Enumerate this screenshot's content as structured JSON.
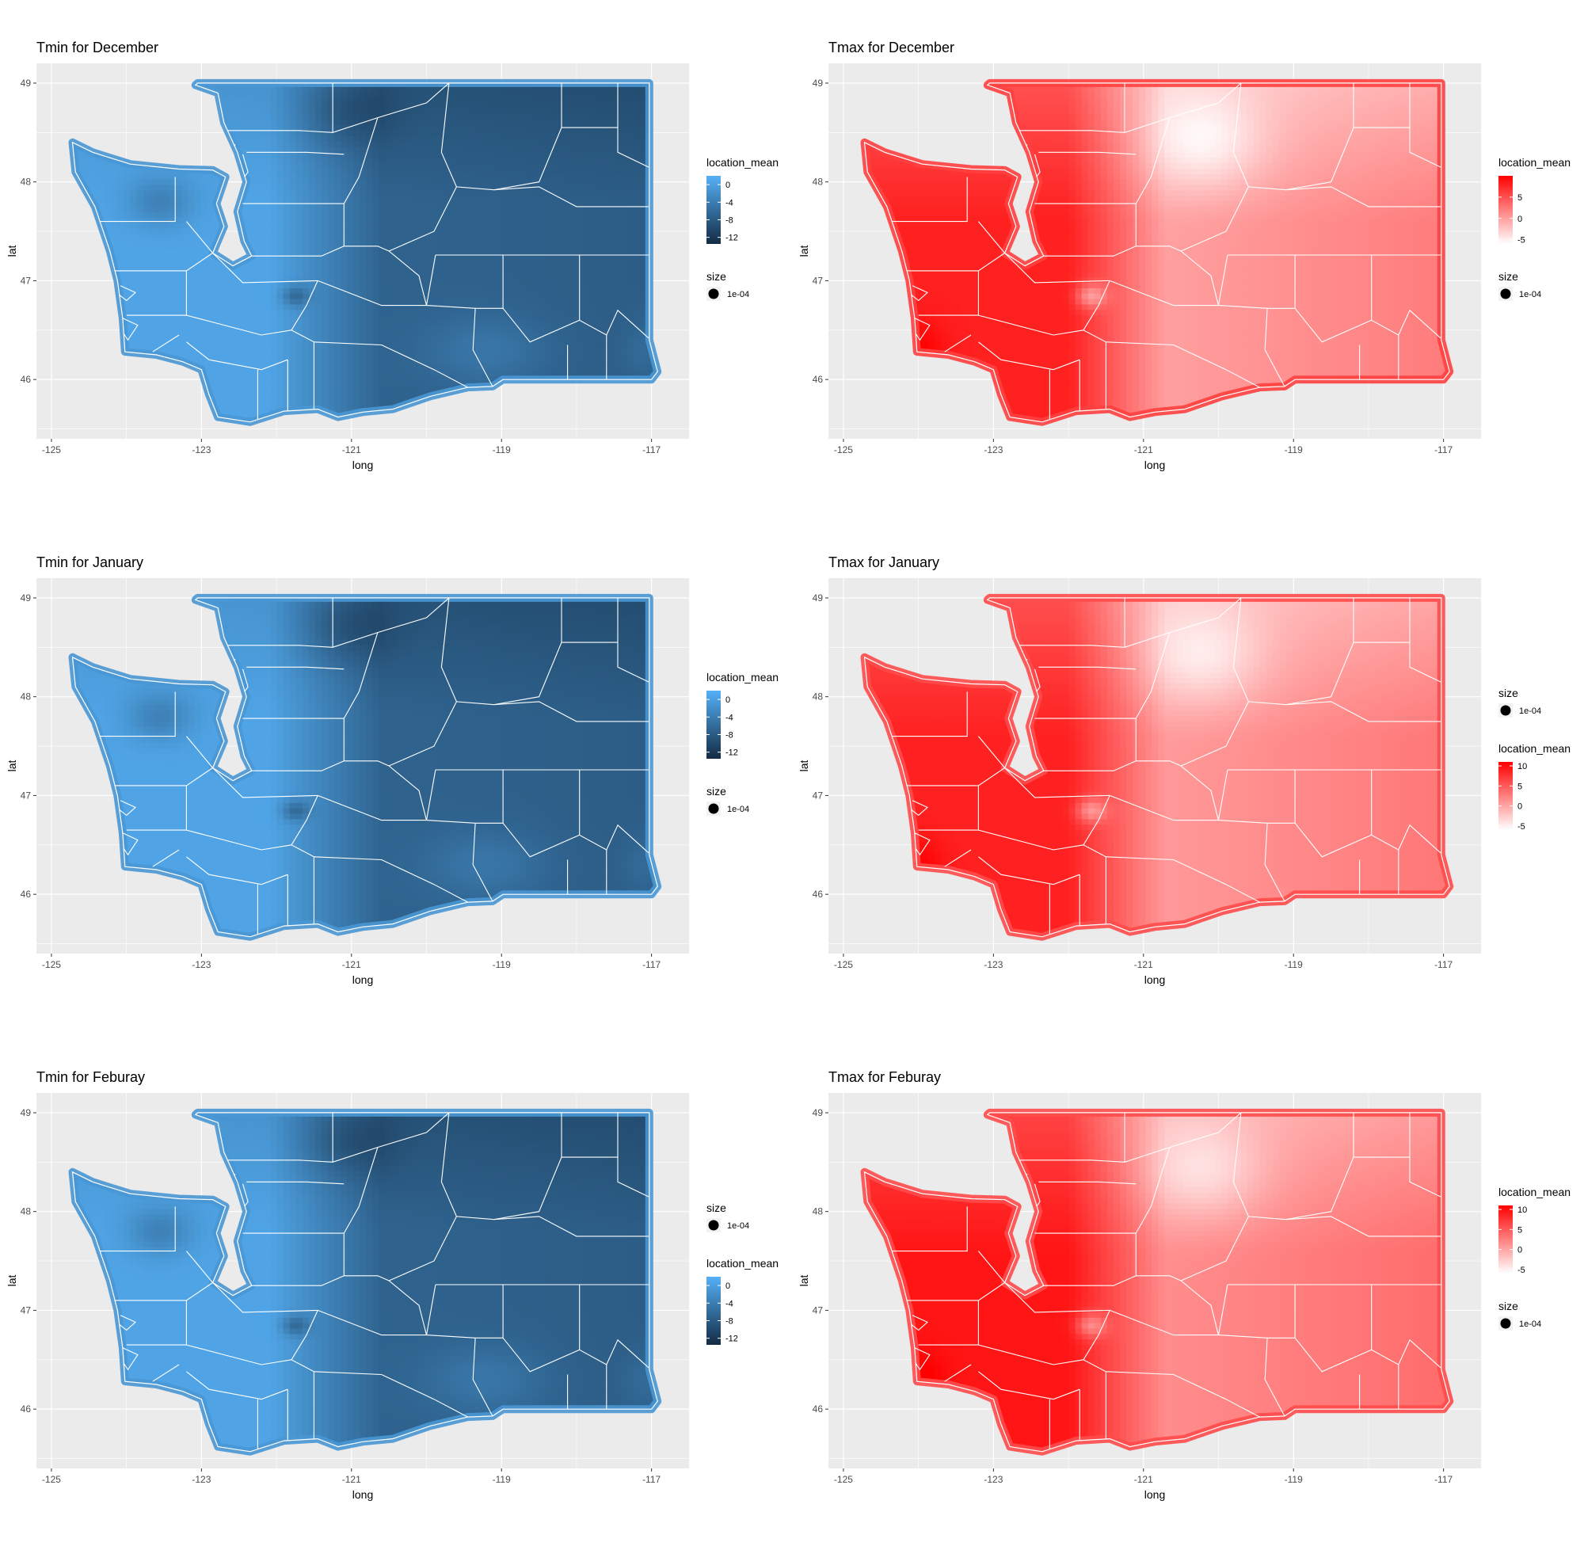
{
  "chart_data": [
    {
      "type": "heatmap",
      "title": "Tmin for December",
      "xlabel": "long",
      "ylabel": "lat",
      "xticks": [
        "-125",
        "-123",
        "-121",
        "-119",
        "-117"
      ],
      "yticks": [
        "49",
        "48",
        "47",
        "46"
      ],
      "xlim": [
        -125.2,
        -116.5
      ],
      "ylim": [
        45.4,
        49.2
      ],
      "legend_order": [
        "colour",
        "size"
      ],
      "colour_legend": {
        "title": "location_mean",
        "ticks": [
          "0",
          "-4",
          "-8",
          "-12"
        ],
        "values": [
          0,
          -4,
          -8,
          -12
        ],
        "range": [
          -13.5,
          2
        ],
        "low_color": "#132B43",
        "high_color": "#56B1F7"
      },
      "size_legend": {
        "title": "size",
        "label": "1e-04"
      }
    },
    {
      "type": "heatmap",
      "title": "Tmax for December",
      "xlabel": "long",
      "ylabel": "lat",
      "xticks": [
        "-125",
        "-123",
        "-121",
        "-119",
        "-117"
      ],
      "yticks": [
        "49",
        "48",
        "47",
        "46"
      ],
      "xlim": [
        -125.2,
        -116.5
      ],
      "ylim": [
        45.4,
        49.2
      ],
      "legend_order": [
        "colour",
        "size"
      ],
      "colour_legend": {
        "title": "location_mean",
        "ticks": [
          "5",
          "0",
          "-5"
        ],
        "values": [
          5,
          0,
          -5
        ],
        "range": [
          -6,
          10
        ],
        "low_color": "#FFFFFF",
        "high_color": "#FF0000"
      },
      "size_legend": {
        "title": "size",
        "label": "1e-04"
      }
    },
    {
      "type": "heatmap",
      "title": "Tmin for January",
      "xlabel": "long",
      "ylabel": "lat",
      "xticks": [
        "-125",
        "-123",
        "-121",
        "-119",
        "-117"
      ],
      "yticks": [
        "49",
        "48",
        "47",
        "46"
      ],
      "xlim": [
        -125.2,
        -116.5
      ],
      "ylim": [
        45.4,
        49.2
      ],
      "legend_order": [
        "colour",
        "size"
      ],
      "colour_legend": {
        "title": "location_mean",
        "ticks": [
          "0",
          "-4",
          "-8",
          "-12"
        ],
        "values": [
          0,
          -4,
          -8,
          -12
        ],
        "range": [
          -13.5,
          2
        ],
        "low_color": "#132B43",
        "high_color": "#56B1F7"
      },
      "size_legend": {
        "title": "size",
        "label": "1e-04"
      }
    },
    {
      "type": "heatmap",
      "title": "Tmax for January",
      "xlabel": "long",
      "ylabel": "lat",
      "xticks": [
        "-125",
        "-123",
        "-121",
        "-119",
        "-117"
      ],
      "yticks": [
        "49",
        "48",
        "47",
        "46"
      ],
      "xlim": [
        -125.2,
        -116.5
      ],
      "ylim": [
        45.4,
        49.2
      ],
      "legend_order": [
        "size",
        "colour"
      ],
      "colour_legend": {
        "title": "location_mean",
        "ticks": [
          "10",
          "5",
          "0",
          "-5"
        ],
        "values": [
          10,
          5,
          0,
          -5
        ],
        "range": [
          -6,
          11
        ],
        "low_color": "#FFFFFF",
        "high_color": "#FF0000"
      },
      "size_legend": {
        "title": "size",
        "label": "1e-04"
      }
    },
    {
      "type": "heatmap",
      "title": "Tmin for Feburay",
      "xlabel": "long",
      "ylabel": "lat",
      "xticks": [
        "-125",
        "-123",
        "-121",
        "-119",
        "-117"
      ],
      "yticks": [
        "49",
        "48",
        "47",
        "46"
      ],
      "xlim": [
        -125.2,
        -116.5
      ],
      "ylim": [
        45.4,
        49.2
      ],
      "legend_order": [
        "size",
        "colour"
      ],
      "colour_legend": {
        "title": "location_mean",
        "ticks": [
          "0",
          "-4",
          "-8",
          "-12"
        ],
        "values": [
          0,
          -4,
          -8,
          -12
        ],
        "range": [
          -13.5,
          2
        ],
        "low_color": "#132B43",
        "high_color": "#56B1F7"
      },
      "size_legend": {
        "title": "size",
        "label": "1e-04"
      }
    },
    {
      "type": "heatmap",
      "title": "Tmax for Feburay",
      "xlabel": "long",
      "ylabel": "lat",
      "xticks": [
        "-125",
        "-123",
        "-121",
        "-119",
        "-117"
      ],
      "yticks": [
        "49",
        "48",
        "47",
        "46"
      ],
      "xlim": [
        -125.2,
        -116.5
      ],
      "ylim": [
        45.4,
        49.2
      ],
      "legend_order": [
        "colour",
        "size"
      ],
      "colour_legend": {
        "title": "location_mean",
        "ticks": [
          "10",
          "5",
          "0",
          "-5"
        ],
        "values": [
          10,
          5,
          0,
          -5
        ],
        "range": [
          -6,
          11
        ],
        "low_color": "#FFFFFF",
        "high_color": "#FF0000"
      },
      "size_legend": {
        "title": "size",
        "label": "1e-04"
      }
    }
  ],
  "colors": {
    "panel_background": "#EBEBEB",
    "grid": "#FFFFFF",
    "border": "#FFFFFF"
  }
}
